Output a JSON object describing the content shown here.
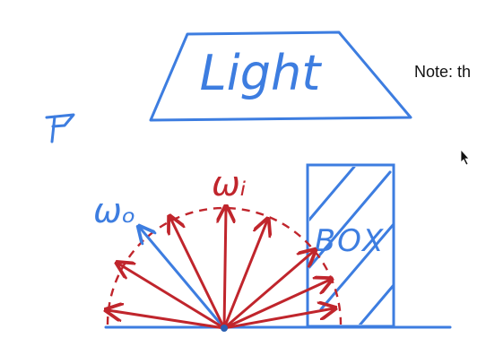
{
  "whiteboard": {
    "note_text": "Note: th",
    "light_label": "Light",
    "box_label": "BOX",
    "omega_o_label": "ωₒ",
    "omega_i_label": "ωᵢ",
    "ink_colors": {
      "blue": "#3d7de0",
      "red": "#c0252c",
      "dark_blue": "#2a5fb0"
    },
    "icons": {
      "cursor": "mouse-pointer-icon"
    }
  }
}
